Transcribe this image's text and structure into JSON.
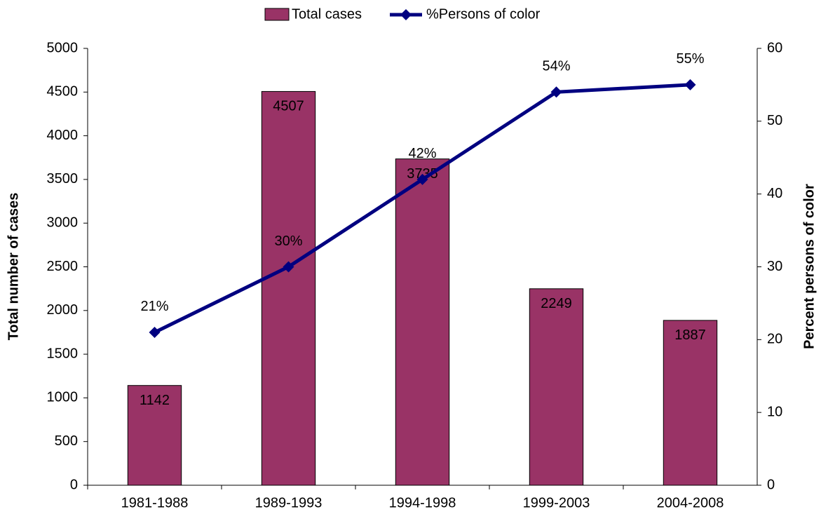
{
  "chart_data": {
    "type": "bar_line",
    "categories": [
      "1981-1988",
      "1989-1993",
      "1994-1998",
      "1999-2003",
      "2004-2008"
    ],
    "ylabel": "Total number of cases",
    "y2label": "Percent persons of color",
    "ylim": [
      0,
      5000
    ],
    "yticks": [
      0,
      500,
      1000,
      1500,
      2000,
      2500,
      3000,
      3500,
      4000,
      4500,
      5000
    ],
    "y2lim": [
      0,
      60
    ],
    "y2ticks": [
      0,
      10,
      20,
      30,
      40,
      50,
      60
    ],
    "legend": "top",
    "series": [
      {
        "name": "Total cases",
        "type": "bar",
        "color": "#993366",
        "values": [
          1142,
          4507,
          3735,
          2249,
          1887
        ]
      },
      {
        "name": "%Persons of color",
        "type": "line",
        "axis": "y2",
        "color": "#000080",
        "values": [
          21,
          30,
          42,
          54,
          55
        ],
        "value_labels": [
          "21%",
          "30%",
          "42%",
          "54%",
          "55%"
        ]
      }
    ]
  }
}
